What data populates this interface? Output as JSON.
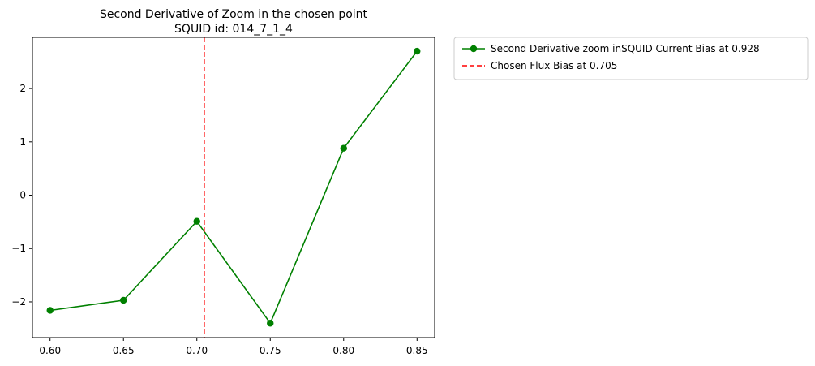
{
  "chart_data": {
    "type": "line",
    "title": "Second Derivative of Zoom in the chosen point",
    "subtitle": "SQUID id: 014_7_1_4",
    "xlabel": "",
    "ylabel": "",
    "xlim": [
      0.588,
      0.862
    ],
    "ylim": [
      -2.67,
      2.96
    ],
    "x_ticks": [
      0.6,
      0.65,
      0.7,
      0.75,
      0.8,
      0.85
    ],
    "x_tick_labels": [
      "0.60",
      "0.65",
      "0.70",
      "0.75",
      "0.80",
      "0.85"
    ],
    "y_ticks": [
      -2,
      -1,
      0,
      1,
      2
    ],
    "y_tick_labels": [
      "−2",
      "−1",
      "0",
      "1",
      "2"
    ],
    "grid": false,
    "legend_position": "outside-upper-right",
    "series": [
      {
        "name": "Second Derivative zoom inSQUID Current Bias at 0.928",
        "color": "#008000",
        "marker": "circle",
        "x": [
          0.6,
          0.65,
          0.7,
          0.75,
          0.8,
          0.85
        ],
        "y": [
          -2.16,
          -1.97,
          -0.49,
          -2.4,
          0.88,
          2.7
        ]
      }
    ],
    "vlines": [
      {
        "name": "Chosen Flux Bias at 0.705",
        "x": 0.705,
        "color": "#ff0000",
        "style": "dashed"
      }
    ]
  }
}
